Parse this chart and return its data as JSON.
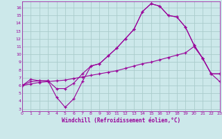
{
  "xlabel": "Windchill (Refroidissement éolien,°C)",
  "bg_color": "#cce8ea",
  "line_color": "#990099",
  "grid_color": "#aacccc",
  "x_ticks": [
    0,
    1,
    2,
    3,
    4,
    5,
    6,
    7,
    8,
    9,
    10,
    11,
    12,
    13,
    14,
    15,
    16,
    17,
    18,
    19,
    20,
    21,
    22,
    23
  ],
  "y_ticks": [
    3,
    4,
    5,
    6,
    7,
    8,
    9,
    10,
    11,
    12,
    13,
    14,
    15,
    16
  ],
  "xlim": [
    0,
    23
  ],
  "ylim": [
    2.7,
    16.8
  ],
  "line1_x": [
    0,
    1,
    2,
    3,
    4,
    5,
    6,
    7,
    8,
    9,
    10,
    11,
    12,
    13,
    14,
    15,
    16,
    17,
    18,
    19,
    20,
    21,
    22,
    23
  ],
  "line1_y": [
    6.0,
    6.8,
    6.6,
    6.6,
    5.6,
    5.6,
    6.3,
    7.5,
    8.5,
    8.8,
    9.8,
    10.8,
    12.0,
    13.2,
    15.5,
    16.5,
    16.2,
    15.0,
    14.8,
    13.5,
    11.2,
    9.5,
    7.5,
    7.5
  ],
  "line2_x": [
    0,
    1,
    2,
    3,
    4,
    5,
    6,
    7,
    8,
    9,
    10,
    11,
    12,
    13,
    14,
    15,
    16,
    17,
    18,
    19,
    20,
    21,
    22,
    23
  ],
  "line2_y": [
    6.0,
    6.5,
    6.6,
    6.6,
    4.5,
    3.2,
    4.3,
    6.5,
    8.5,
    8.8,
    9.8,
    10.8,
    12.0,
    13.2,
    15.5,
    16.5,
    16.2,
    15.0,
    14.8,
    13.5,
    11.2,
    9.5,
    7.5,
    7.5
  ],
  "line3_x": [
    0,
    1,
    2,
    3,
    4,
    5,
    6,
    7,
    8,
    9,
    10,
    11,
    12,
    13,
    14,
    15,
    16,
    17,
    18,
    19,
    20,
    21,
    22,
    23
  ],
  "line3_y": [
    6.0,
    6.2,
    6.4,
    6.5,
    6.6,
    6.7,
    6.9,
    7.1,
    7.3,
    7.5,
    7.7,
    7.9,
    8.2,
    8.5,
    8.8,
    9.0,
    9.3,
    9.6,
    9.9,
    10.2,
    11.0,
    9.5,
    7.5,
    6.5
  ]
}
